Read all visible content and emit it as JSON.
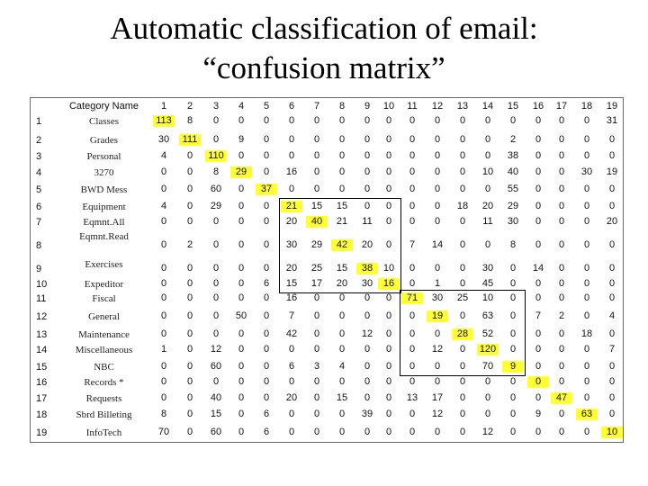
{
  "title": {
    "line1": "Automatic classification of email:",
    "line2": "“confusion matrix”"
  },
  "table": {
    "header_label": "Category Name",
    "columns": [
      "1",
      "2",
      "3",
      "4",
      "5",
      "6",
      "7",
      "8",
      "9",
      "10",
      "11",
      "12",
      "13",
      "14",
      "15",
      "16",
      "17",
      "18",
      "19"
    ],
    "highlight_color": "#ffff33",
    "rows": [
      {
        "n": "1",
        "name": "Classes",
        "values": [
          "113",
          "8",
          "0",
          "0",
          "0",
          "0",
          "0",
          "0",
          "0",
          "0",
          "0",
          "0",
          "0",
          "0",
          "0",
          "0",
          "0",
          "0",
          "31"
        ]
      },
      {
        "n": "2",
        "name": "Grades",
        "values": [
          "30",
          "111",
          "0",
          "9",
          "0",
          "0",
          "0",
          "0",
          "0",
          "0",
          "0",
          "0",
          "0",
          "0",
          "2",
          "0",
          "0",
          "0",
          "0"
        ]
      },
      {
        "n": "3",
        "name": "Personal",
        "values": [
          "4",
          "0",
          "110",
          "0",
          "0",
          "0",
          "0",
          "0",
          "0",
          "0",
          "0",
          "0",
          "0",
          "0",
          "38",
          "0",
          "0",
          "0",
          "0"
        ]
      },
      {
        "n": "4",
        "name": "3270",
        "values": [
          "0",
          "0",
          "8",
          "29",
          "0",
          "16",
          "0",
          "0",
          "0",
          "0",
          "0",
          "0",
          "0",
          "10",
          "40",
          "0",
          "0",
          "30",
          "19"
        ]
      },
      {
        "n": "5",
        "name": "BWD Mess",
        "values": [
          "0",
          "0",
          "60",
          "0",
          "37",
          "0",
          "0",
          "0",
          "0",
          "0",
          "0",
          "0",
          "0",
          "0",
          "55",
          "0",
          "0",
          "0",
          "0"
        ]
      },
      {
        "n": "6",
        "name": "Equipment",
        "values": [
          "4",
          "0",
          "29",
          "0",
          "0",
          "21",
          "15",
          "15",
          "0",
          "0",
          "0",
          "0",
          "18",
          "20",
          "29",
          "0",
          "0",
          "0",
          "0"
        ]
      },
      {
        "n": "7",
        "name": "Eqmnt.All",
        "values": [
          "0",
          "0",
          "0",
          "0",
          "0",
          "20",
          "40",
          "21",
          "11",
          "0",
          "0",
          "0",
          "0",
          "11",
          "30",
          "0",
          "0",
          "0",
          "20"
        ]
      },
      {
        "n": "8",
        "name": "Eqmnt.Read",
        "values": [
          "0",
          "2",
          "0",
          "0",
          "0",
          "30",
          "29",
          "42",
          "20",
          "0",
          "7",
          "14",
          "0",
          "0",
          "8",
          "0",
          "0",
          "0",
          "0"
        ]
      },
      {
        "n": "9",
        "name": "Exercises",
        "values": [
          "0",
          "0",
          "0",
          "0",
          "0",
          "20",
          "25",
          "15",
          "38",
          "10",
          "0",
          "0",
          "0",
          "30",
          "0",
          "14",
          "0",
          "0",
          "0"
        ]
      },
      {
        "n": "10",
        "name": "Expeditor",
        "values": [
          "0",
          "0",
          "0",
          "0",
          "6",
          "15",
          "17",
          "20",
          "30",
          "16",
          "0",
          "1",
          "0",
          "45",
          "0",
          "0",
          "0",
          "0",
          "0"
        ]
      },
      {
        "n": "11",
        "name": "Fiscal",
        "values": [
          "0",
          "0",
          "0",
          "0",
          "0",
          "16",
          "0",
          "0",
          "0",
          "0",
          "71",
          "30",
          "25",
          "10",
          "0",
          "0",
          "0",
          "0",
          "0"
        ]
      },
      {
        "n": "12",
        "name": "General",
        "values": [
          "0",
          "0",
          "0",
          "50",
          "0",
          "7",
          "0",
          "0",
          "0",
          "0",
          "0",
          "19",
          "0",
          "63",
          "0",
          "7",
          "2",
          "0",
          "4"
        ]
      },
      {
        "n": "13",
        "name": "Maintenance",
        "values": [
          "0",
          "0",
          "0",
          "0",
          "0",
          "42",
          "0",
          "0",
          "12",
          "0",
          "0",
          "0",
          "28",
          "52",
          "0",
          "0",
          "0",
          "18",
          "0"
        ]
      },
      {
        "n": "14",
        "name": "Miscellaneous",
        "values": [
          "1",
          "0",
          "12",
          "0",
          "0",
          "0",
          "0",
          "0",
          "0",
          "0",
          "0",
          "12",
          "0",
          "120",
          "0",
          "0",
          "0",
          "0",
          "7"
        ]
      },
      {
        "n": "15",
        "name": "NBC",
        "values": [
          "0",
          "0",
          "60",
          "0",
          "0",
          "6",
          "3",
          "4",
          "0",
          "0",
          "0",
          "0",
          "0",
          "70",
          "9",
          "0",
          "0",
          "0",
          "0"
        ]
      },
      {
        "n": "16",
        "name": "Records *",
        "values": [
          "0",
          "0",
          "0",
          "0",
          "0",
          "0",
          "0",
          "0",
          "0",
          "0",
          "0",
          "0",
          "0",
          "0",
          "0",
          "0",
          "0",
          "0",
          "0"
        ]
      },
      {
        "n": "17",
        "name": "Requests",
        "values": [
          "0",
          "0",
          "40",
          "0",
          "0",
          "20",
          "0",
          "15",
          "0",
          "0",
          "13",
          "17",
          "0",
          "0",
          "0",
          "0",
          "47",
          "0",
          "0"
        ]
      },
      {
        "n": "18",
        "name": "Sbrd Billeting",
        "values": [
          "8",
          "0",
          "15",
          "0",
          "6",
          "0",
          "0",
          "0",
          "39",
          "0",
          "0",
          "12",
          "0",
          "0",
          "0",
          "9",
          "0",
          "63",
          "0"
        ]
      },
      {
        "n": "19",
        "name": "InfoTech",
        "values": [
          "70",
          "0",
          "60",
          "0",
          "6",
          "0",
          "0",
          "0",
          "0",
          "0",
          "0",
          "0",
          "0",
          "12",
          "0",
          "0",
          "0",
          "0",
          "10"
        ]
      }
    ]
  }
}
